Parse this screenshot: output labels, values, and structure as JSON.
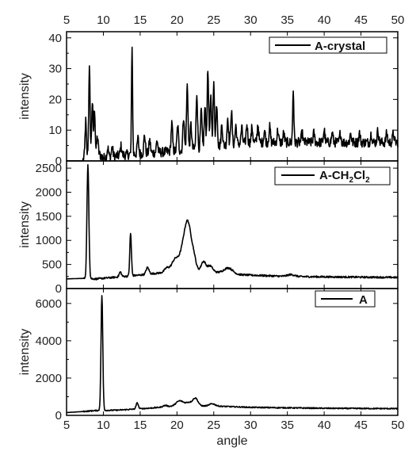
{
  "chart_data": {
    "type": "line",
    "xlabel": "angle",
    "x_ticks": [
      "5",
      "10",
      "15",
      "20",
      "25",
      "30",
      "35",
      "40",
      "45",
      "50"
    ],
    "xlim": [
      5,
      50
    ],
    "grid": false,
    "legend_position": "top-right",
    "panels": [
      {
        "ylabel": "intensity",
        "ylim": [
          0,
          42
        ],
        "y_ticks": [
          "0",
          "10",
          "20",
          "30",
          "40"
        ],
        "series": [
          {
            "name": "A-crystal",
            "peaks": [
              [
                7.6,
                11,
                0.08
              ],
              [
                8.1,
                28,
                0.09
              ],
              [
                8.5,
                17,
                0.09
              ],
              [
                8.8,
                15,
                0.09
              ],
              [
                9.2,
                6,
                0.1
              ],
              [
                10.6,
                3,
                0.1
              ],
              [
                11.2,
                3,
                0.1
              ],
              [
                12.4,
                3,
                0.1
              ],
              [
                13.9,
                36,
                0.07
              ],
              [
                14.7,
                5,
                0.1
              ],
              [
                15.6,
                6,
                0.1
              ],
              [
                16.3,
                4,
                0.1
              ],
              [
                17.3,
                4,
                0.1
              ],
              [
                19.3,
                9,
                0.1
              ],
              [
                20.1,
                8,
                0.1
              ],
              [
                20.9,
                11,
                0.1
              ],
              [
                21.4,
                21,
                0.1
              ],
              [
                21.9,
                8,
                0.1
              ],
              [
                22.7,
                18,
                0.1
              ],
              [
                23.3,
                12,
                0.1
              ],
              [
                23.8,
                13,
                0.1
              ],
              [
                24.2,
                25,
                0.1
              ],
              [
                24.6,
                16,
                0.1
              ],
              [
                25.0,
                20,
                0.1
              ],
              [
                25.4,
                14,
                0.1
              ],
              [
                26.1,
                7,
                0.1
              ],
              [
                26.9,
                9,
                0.1
              ],
              [
                27.4,
                11,
                0.1
              ],
              [
                28.0,
                6,
                0.1
              ],
              [
                28.8,
                5,
                0.1
              ],
              [
                29.5,
                6,
                0.1
              ],
              [
                30.2,
                5,
                0.1
              ],
              [
                31.0,
                6,
                0.1
              ],
              [
                31.9,
                4,
                0.1
              ],
              [
                32.6,
                5,
                0.1
              ],
              [
                33.7,
                4,
                0.1
              ],
              [
                34.5,
                3,
                0.1
              ],
              [
                35.8,
                17,
                0.08
              ],
              [
                37.0,
                3,
                0.1
              ],
              [
                38.6,
                3,
                0.1
              ],
              [
                40.0,
                4,
                0.1
              ],
              [
                41.1,
                3,
                0.1
              ],
              [
                42.2,
                3,
                0.1
              ],
              [
                43.6,
                3,
                0.1
              ],
              [
                44.8,
                3,
                0.1
              ],
              [
                46.4,
                3,
                0.1
              ],
              [
                47.3,
                4,
                0.1
              ],
              [
                48.5,
                3,
                0.1
              ],
              [
                49.4,
                3,
                0.1
              ]
            ],
            "background": [
              [
                5,
                0
              ],
              [
                7.2,
                0
              ],
              [
                7.5,
                2
              ],
              [
                9.5,
                2
              ],
              [
                10,
                1
              ],
              [
                13,
                2
              ],
              [
                19,
                3
              ],
              [
                30,
                6
              ],
              [
                50,
                6
              ]
            ],
            "noise": 1.6
          }
        ]
      },
      {
        "ylabel": "intensity",
        "ylim": [
          0,
          2650
        ],
        "y_ticks": [
          "0",
          "500",
          "1000",
          "1500",
          "2000",
          "2500"
        ],
        "series": [
          {
            "name": "A-CH2Cl2",
            "legend_main": "A-CH",
            "legend_sub1": "2",
            "legend_mid": "Cl",
            "legend_sub2": "2",
            "peaks": [
              [
                7.9,
                2350,
                0.13
              ],
              [
                12.3,
                100,
                0.15
              ],
              [
                13.7,
                880,
                0.11
              ],
              [
                16.0,
                140,
                0.2
              ],
              [
                18.6,
                80,
                0.3
              ],
              [
                19.8,
                260,
                0.5
              ],
              [
                20.8,
                320,
                0.4
              ],
              [
                21.5,
                950,
                0.45
              ],
              [
                22.3,
                220,
                0.3
              ],
              [
                23.6,
                200,
                0.3
              ],
              [
                24.5,
                120,
                0.35
              ],
              [
                27.0,
                120,
                0.6
              ],
              [
                35.5,
                40,
                0.5
              ]
            ],
            "background": [
              [
                5,
                200
              ],
              [
                7,
                210
              ],
              [
                9,
                200
              ],
              [
                12,
                240
              ],
              [
                15,
                280
              ],
              [
                18,
                330
              ],
              [
                21,
                380
              ],
              [
                24,
                360
              ],
              [
                28,
                290
              ],
              [
                35,
                250
              ],
              [
                42,
                240
              ],
              [
                50,
                230
              ]
            ],
            "noise": 18
          }
        ]
      },
      {
        "ylabel": "intensity",
        "ylim": [
          0,
          6800
        ],
        "y_ticks": [
          "0",
          "2000",
          "4000",
          "6000"
        ],
        "series": [
          {
            "name": "A",
            "peaks": [
              [
                9.8,
                6150,
                0.12
              ],
              [
                14.6,
                320,
                0.15
              ],
              [
                18.4,
                80,
                0.3
              ],
              [
                20.4,
                280,
                0.5
              ],
              [
                21.6,
                180,
                0.4
              ],
              [
                22.5,
                420,
                0.35
              ],
              [
                24.8,
                120,
                0.4
              ]
            ],
            "background": [
              [
                5,
                150
              ],
              [
                7,
                200
              ],
              [
                9,
                260
              ],
              [
                12,
                280
              ],
              [
                16,
                380
              ],
              [
                20,
                500
              ],
              [
                25,
                500
              ],
              [
                30,
                430
              ],
              [
                40,
                380
              ],
              [
                50,
                360
              ]
            ],
            "noise": 30
          }
        ]
      }
    ]
  }
}
